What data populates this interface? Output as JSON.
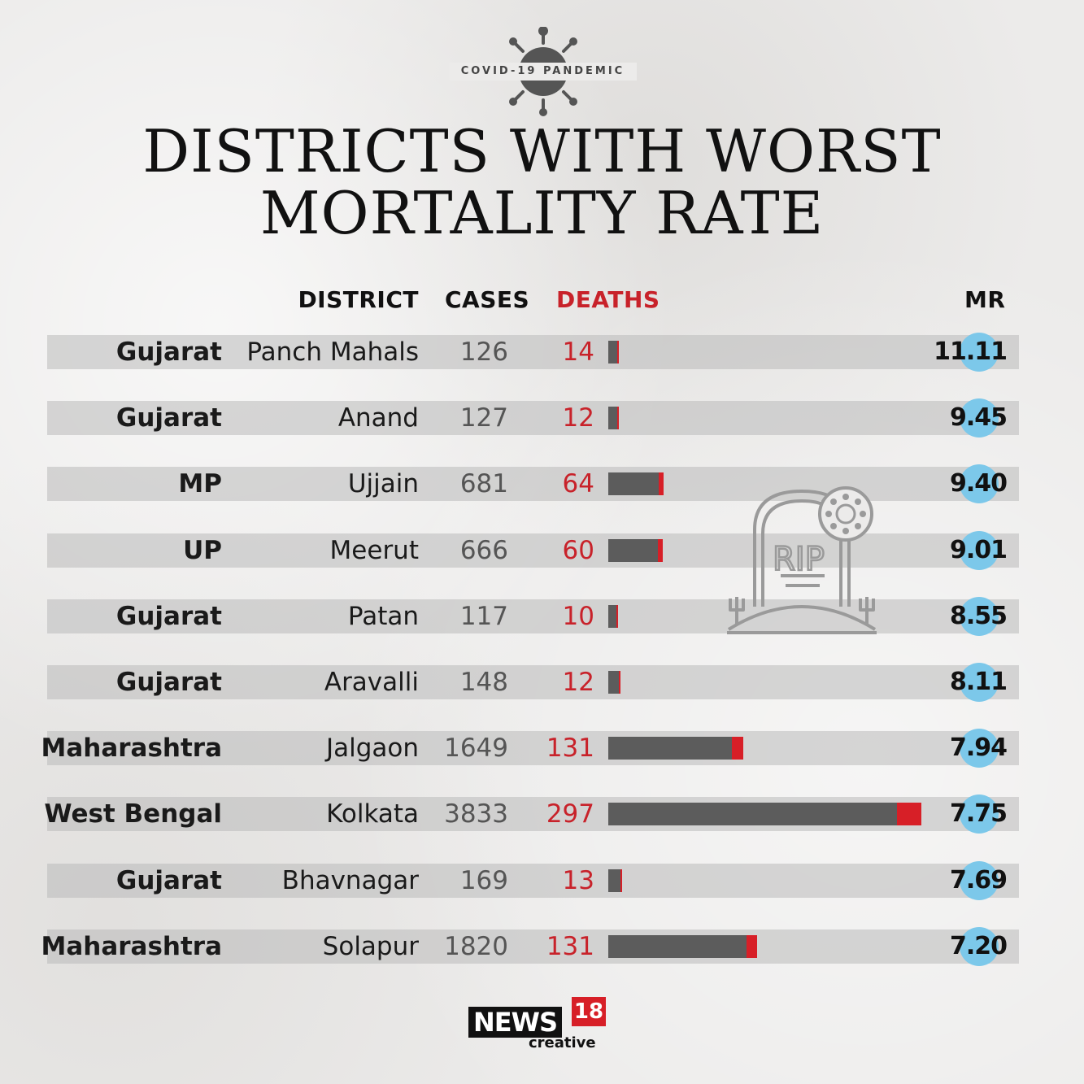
{
  "badge_text": "COVID-19 PANDEMIC",
  "title_line1": "DISTRICTS WITH WORST",
  "title_line2": "MORTALITY RATE",
  "headers": {
    "district": "DISTRICT",
    "cases": "CASES",
    "deaths": "DEATHS",
    "mr": "MR"
  },
  "colors": {
    "deaths": "#c8222a",
    "bar_grey": "#5c5c5c",
    "bar_red": "#d71f27",
    "mr_dot": "#7cc8ea"
  },
  "icons": [
    "coronavirus-icon",
    "tombstone-rip-icon"
  ],
  "tomb_text": "RIP",
  "logo": {
    "news": "NEWS",
    "num": "18",
    "sub": "creative"
  },
  "chart_data": {
    "type": "table",
    "columns": [
      "",
      "DISTRICT",
      "CASES",
      "DEATHS",
      "MR"
    ],
    "rows": [
      {
        "state": "Gujarat",
        "district": "Panch Mahals",
        "cases": "126",
        "deaths": "14",
        "mr": "11.11"
      },
      {
        "state": "Gujarat",
        "district": "Anand",
        "cases": "127",
        "deaths": "12",
        "mr": "9.45"
      },
      {
        "state": "MP",
        "district": "Ujjain",
        "cases": "681",
        "deaths": "64",
        "mr": "9.40"
      },
      {
        "state": "UP",
        "district": "Meerut",
        "cases": "666",
        "deaths": "60",
        "mr": "9.01"
      },
      {
        "state": "Gujarat",
        "district": "Patan",
        "cases": "117",
        "deaths": "10",
        "mr": "8.55"
      },
      {
        "state": "Gujarat",
        "district": "Aravalli",
        "cases": "148",
        "deaths": "12",
        "mr": "8.11"
      },
      {
        "state": "Maharashtra",
        "district": "Jalgaon",
        "cases": "1649",
        "deaths": "131",
        "mr": "7.94"
      },
      {
        "state": "West Bengal",
        "district": "Kolkata",
        "cases": "3833",
        "deaths": "297",
        "mr": "7.75"
      },
      {
        "state": "Gujarat",
        "district": "Bhavnagar",
        "cases": "169",
        "deaths": "13",
        "mr": "7.69"
      },
      {
        "state": "Maharashtra",
        "district": "Solapur",
        "cases": "1820",
        "deaths": "131",
        "mr": "7.20"
      }
    ],
    "bars": {
      "metric": "cases",
      "red_segment": "deaths",
      "max_value": 3833
    }
  }
}
